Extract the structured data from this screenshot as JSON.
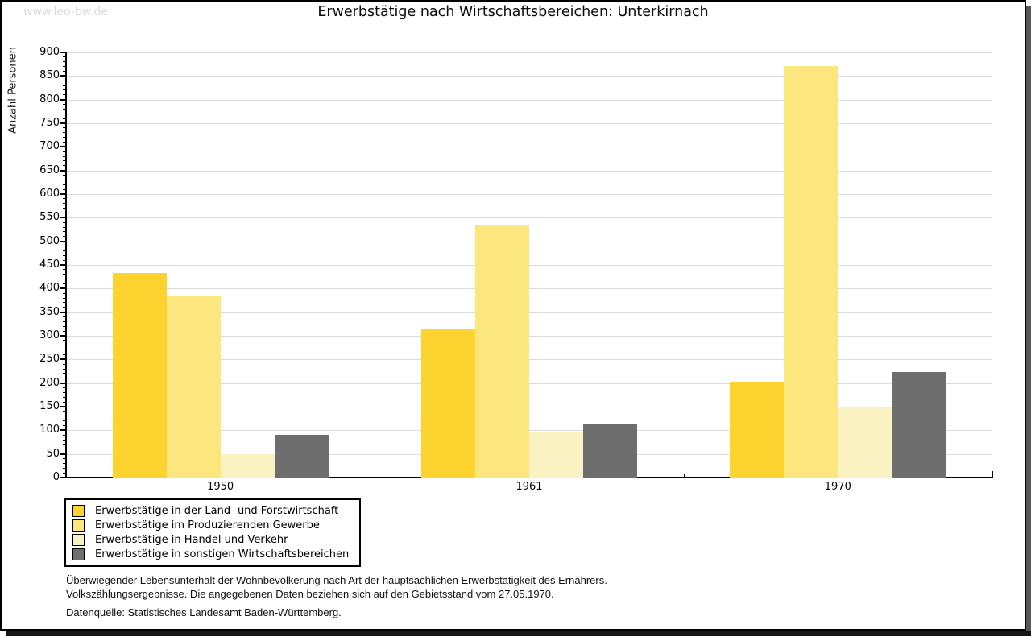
{
  "watermark": "www.leo-bw.de",
  "title": "Erwerbstätige nach Wirtschaftsbereichen: Unterkirnach",
  "y_axis": {
    "label": "Anzahl Personen",
    "min": 0,
    "max": 900,
    "major_step": 50,
    "minor_step": 10
  },
  "x_axis": {
    "categories": [
      "1950",
      "1961",
      "1970"
    ]
  },
  "chart_data": {
    "type": "bar",
    "title": "Erwerbstätige nach Wirtschaftsbereichen: Unterkirnach",
    "xlabel": "",
    "ylabel": "Anzahl Personen",
    "ylim": [
      0,
      900
    ],
    "grid": "horizontal",
    "legend_position": "bottom-left",
    "categories": [
      "1950",
      "1961",
      "1970"
    ],
    "series": [
      {
        "name": "Erwerbstätige in der Land- und Forstwirtschaft",
        "color": "#FCD32F",
        "values": [
          433,
          314,
          203
        ]
      },
      {
        "name": "Erwerbstätige im Produzierenden Gewerbe",
        "color": "#FCE77F",
        "values": [
          385,
          535,
          871
        ]
      },
      {
        "name": "Erwerbstätige in Handel und Verkehr",
        "color": "#FBF2C4",
        "values": [
          50,
          97,
          148
        ]
      },
      {
        "name": "Erwerbstätige in sonstigen Wirtschaftsbereichen",
        "color": "#6E6E6E",
        "values": [
          91,
          112,
          223
        ]
      }
    ]
  },
  "footer": {
    "note_line1": "Überwiegender Lebensunterhalt der Wohnbevölkerung nach Art der hauptsächlichen Erwerbstätigkeit des Ernährers.",
    "note_line2": "Volkszählungsergebnisse. Die angegebenen Daten beziehen sich auf den Gebietsstand vom 27.05.1970.",
    "source": "Datenquelle: Statistisches Landesamt Baden-Württemberg."
  },
  "colors": {
    "grid": "#DBDBDB",
    "axis": "#000000",
    "shadow_right": "#575757",
    "shadow_bottom": "#161616",
    "watermark": "#D9D9D9"
  }
}
